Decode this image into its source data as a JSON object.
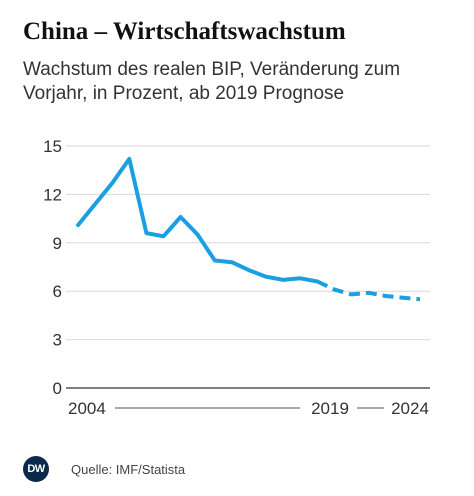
{
  "header": {
    "title": "China – Wirtschaftswachstum",
    "subtitle": "Wachstum des realen BIP, Veränderung zum Vorjahr, in Prozent, ab 2019 Prognose"
  },
  "footer": {
    "logo_text": "DW",
    "source": "Quelle: IMF/Statista"
  },
  "colors": {
    "line": "#1a9fe0",
    "grid": "#d9d9d9",
    "axis": "#333333"
  },
  "chart_data": {
    "type": "line",
    "title": "China – Wirtschaftswachstum",
    "subtitle": "Wachstum des realen BIP, Veränderung zum Vorjahr, in Prozent, ab 2019 Prognose",
    "xlabel": "",
    "ylabel": "",
    "ylim": [
      0,
      15
    ],
    "yticks": [
      0,
      3,
      6,
      9,
      12,
      15
    ],
    "xlim": [
      2004,
      2024
    ],
    "x_labels": [
      "2004",
      "2019",
      "2024"
    ],
    "grid": true,
    "series": [
      {
        "style": "solid",
        "points": [
          {
            "x": 2004,
            "y": 10.1
          },
          {
            "x": 2005,
            "y": 11.4
          },
          {
            "x": 2006,
            "y": 12.7
          },
          {
            "x": 2007,
            "y": 14.2
          },
          {
            "x": 2008,
            "y": 9.6
          },
          {
            "x": 2009,
            "y": 9.4
          },
          {
            "x": 2010,
            "y": 10.6
          },
          {
            "x": 2011,
            "y": 9.5
          },
          {
            "x": 2012,
            "y": 7.9
          },
          {
            "x": 2013,
            "y": 7.8
          },
          {
            "x": 2014,
            "y": 7.3
          },
          {
            "x": 2015,
            "y": 6.9
          },
          {
            "x": 2016,
            "y": 6.7
          },
          {
            "x": 2017,
            "y": 6.8
          },
          {
            "x": 2018,
            "y": 6.6
          }
        ]
      },
      {
        "style": "dashed",
        "points": [
          {
            "x": 2018,
            "y": 6.6
          },
          {
            "x": 2019,
            "y": 6.1
          },
          {
            "x": 2020,
            "y": 5.8
          },
          {
            "x": 2021,
            "y": 5.9
          },
          {
            "x": 2022,
            "y": 5.7
          },
          {
            "x": 2023,
            "y": 5.6
          },
          {
            "x": 2024,
            "y": 5.5
          }
        ]
      }
    ]
  }
}
